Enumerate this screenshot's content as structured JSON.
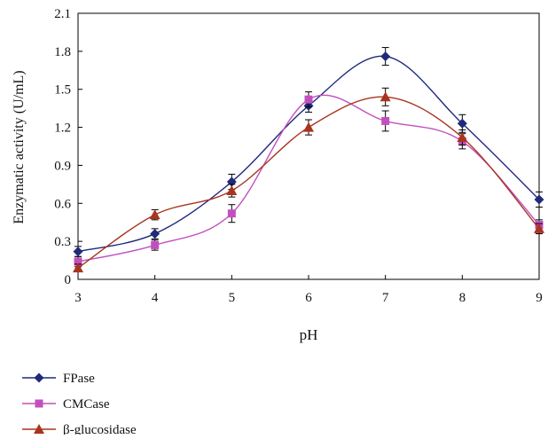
{
  "chart_data": {
    "type": "line",
    "xlabel": "pH",
    "ylabel": "Enzymatic activity (U/mL)",
    "xlim": [
      3,
      9
    ],
    "ylim": [
      0,
      2.1
    ],
    "x_ticks": [
      "3",
      "4",
      "5",
      "6",
      "7",
      "8",
      "9"
    ],
    "y_ticks": [
      "0",
      "0.3",
      "0.6",
      "0.9",
      "1.2",
      "1.5",
      "1.8",
      "2.1"
    ],
    "x": [
      3,
      4,
      5,
      6,
      7,
      8,
      9
    ],
    "grid": false,
    "legend_position": "bottom-left",
    "series": [
      {
        "name": "FPase",
        "marker": "diamond",
        "color": "#1f2a7a",
        "values": [
          0.22,
          0.36,
          0.77,
          1.37,
          1.76,
          1.23,
          0.63
        ],
        "errors": [
          0.04,
          0.04,
          0.06,
          0.05,
          0.07,
          0.07,
          0.06
        ]
      },
      {
        "name": "CMCase",
        "marker": "square",
        "color": "#c24fc0",
        "values": [
          0.14,
          0.27,
          0.52,
          1.42,
          1.25,
          1.09,
          0.43
        ],
        "errors": [
          0.04,
          0.04,
          0.07,
          0.06,
          0.08,
          0.06,
          0.04
        ]
      },
      {
        "name": "β-glucosidase",
        "marker": "triangle",
        "color": "#a8341f",
        "values": [
          0.09,
          0.51,
          0.7,
          1.2,
          1.44,
          1.12,
          0.4
        ],
        "errors": [
          0.03,
          0.04,
          0.05,
          0.06,
          0.07,
          0.06,
          0.04
        ]
      }
    ]
  }
}
